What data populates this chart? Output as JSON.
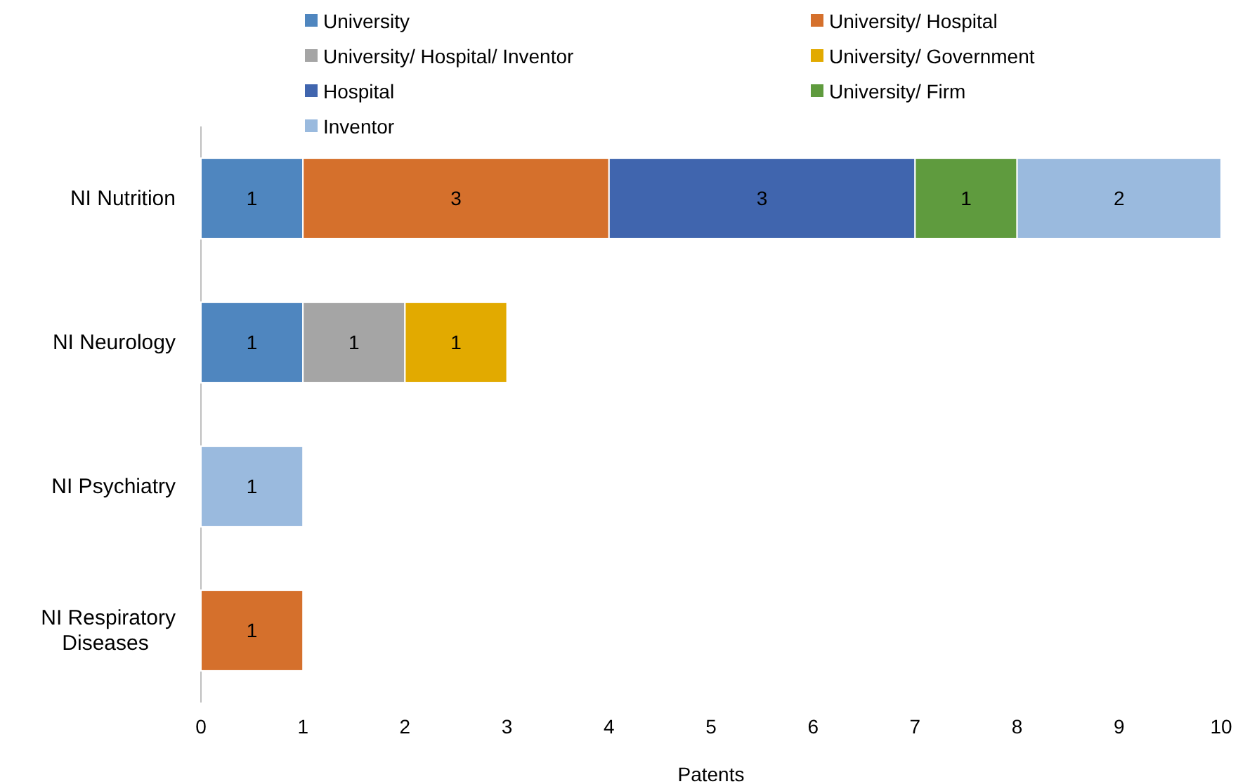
{
  "chart_data": {
    "type": "bar",
    "orientation": "horizontal",
    "stacked": true,
    "data_labels": true,
    "grid": false,
    "legend": "top",
    "xlabel": "Patents",
    "categories": [
      "NI Nutrition",
      "NI Neurology",
      "NI Psychiatry",
      "NI Respiratory Diseases"
    ],
    "xlim": [
      0,
      10
    ],
    "xticks": [
      0,
      1,
      2,
      3,
      4,
      5,
      6,
      7,
      8,
      9,
      10
    ],
    "series": [
      {
        "name": "University",
        "color": "#4f86bf",
        "values": [
          1,
          1,
          null,
          null
        ]
      },
      {
        "name": "University/ Hospital",
        "color": "#d5702c",
        "values": [
          3,
          null,
          null,
          1
        ]
      },
      {
        "name": "University/ Hospital/ Inventor",
        "color": "#a5a5a5",
        "values": [
          null,
          1,
          null,
          null
        ]
      },
      {
        "name": "University/ Government",
        "color": "#e2aa00",
        "values": [
          null,
          1,
          null,
          null
        ]
      },
      {
        "name": "Hospital",
        "color": "#4065ae",
        "values": [
          3,
          null,
          null,
          null
        ]
      },
      {
        "name": "University/ Firm",
        "color": "#5f9b3e",
        "values": [
          1,
          null,
          null,
          null
        ]
      },
      {
        "name": "Inventor",
        "color": "#9abade",
        "values": [
          2,
          null,
          1,
          null
        ]
      }
    ]
  }
}
